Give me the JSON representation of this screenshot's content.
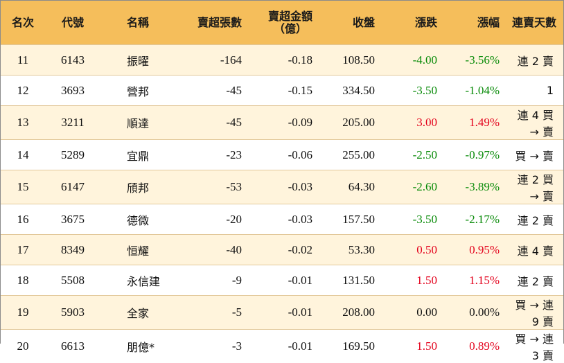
{
  "headers": {
    "rank": "名次",
    "code": "代號",
    "name": "名稱",
    "net_sell_lots": "賣超張數",
    "net_sell_amount_line1": "賣超金額",
    "net_sell_amount_line2": "（億）",
    "close": "收盤",
    "change": "漲跌",
    "change_pct": "漲幅",
    "streak": "連賣天數"
  },
  "colors": {
    "up": "#e3001b",
    "down": "#078a07",
    "header_bg": "#f5be5b",
    "stripe_bg": "#fff4dc"
  },
  "rows": [
    {
      "rank": "11",
      "code": "6143",
      "name": "振曜",
      "lots": "-164",
      "amount": "-0.18",
      "close": "108.50",
      "change": "-4.00",
      "pct": "-3.56%",
      "streak": "連 2 賣",
      "dir": "down"
    },
    {
      "rank": "12",
      "code": "3693",
      "name": "營邦",
      "lots": "-45",
      "amount": "-0.15",
      "close": "334.50",
      "change": "-3.50",
      "pct": "-1.04%",
      "streak": "1",
      "dir": "down"
    },
    {
      "rank": "13",
      "code": "3211",
      "name": "順達",
      "lots": "-45",
      "amount": "-0.09",
      "close": "205.00",
      "change": "3.00",
      "pct": "1.49%",
      "streak": "連 4 買 → 賣",
      "dir": "up"
    },
    {
      "rank": "14",
      "code": "5289",
      "name": "宜鼎",
      "lots": "-23",
      "amount": "-0.06",
      "close": "255.00",
      "change": "-2.50",
      "pct": "-0.97%",
      "streak": "買 → 賣",
      "dir": "down"
    },
    {
      "rank": "15",
      "code": "6147",
      "name": "頎邦",
      "lots": "-53",
      "amount": "-0.03",
      "close": "64.30",
      "change": "-2.60",
      "pct": "-3.89%",
      "streak": "連 2 買 → 賣",
      "dir": "down"
    },
    {
      "rank": "16",
      "code": "3675",
      "name": "德微",
      "lots": "-20",
      "amount": "-0.03",
      "close": "157.50",
      "change": "-3.50",
      "pct": "-2.17%",
      "streak": "連 2 賣",
      "dir": "down"
    },
    {
      "rank": "17",
      "code": "8349",
      "name": "恒耀",
      "lots": "-40",
      "amount": "-0.02",
      "close": "53.30",
      "change": "0.50",
      "pct": "0.95%",
      "streak": "連 4 賣",
      "dir": "up"
    },
    {
      "rank": "18",
      "code": "5508",
      "name": "永信建",
      "lots": "-9",
      "amount": "-0.01",
      "close": "131.50",
      "change": "1.50",
      "pct": "1.15%",
      "streak": "連 2 賣",
      "dir": "up"
    },
    {
      "rank": "19",
      "code": "5903",
      "name": "全家",
      "lots": "-5",
      "amount": "-0.01",
      "close": "208.00",
      "change": "0.00",
      "pct": "0.00%",
      "streak": "買 → 連 9 賣",
      "dir": "flat"
    },
    {
      "rank": "20",
      "code": "6613",
      "name": "朋億*",
      "lots": "-3",
      "amount": "-0.01",
      "close": "169.50",
      "change": "1.50",
      "pct": "0.89%",
      "streak": "買 → 連 3 賣",
      "dir": "up"
    }
  ]
}
